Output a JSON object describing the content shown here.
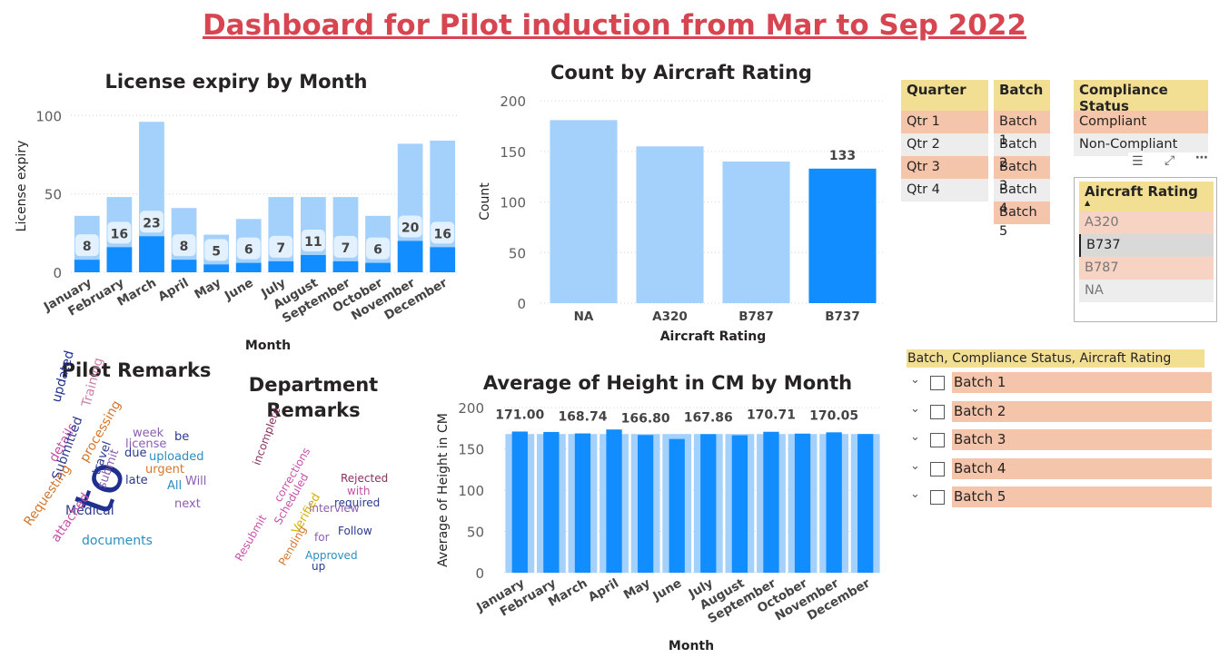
{
  "dashboard_title": "Dashboard for Pilot induction from Mar to Sep 2022",
  "chart_data": [
    {
      "id": "license",
      "type": "bar",
      "title": "License expiry by Month",
      "xlabel": "Month",
      "ylabel": "License expiry",
      "categories": [
        "January",
        "February",
        "March",
        "April",
        "May",
        "June",
        "July",
        "August",
        "September",
        "October",
        "November",
        "December"
      ],
      "series": [
        {
          "values": [
            8,
            16,
            23,
            8,
            5,
            6,
            7,
            11,
            7,
            6,
            20,
            16
          ]
        },
        {
          "values": [
            36,
            48,
            96,
            41,
            24,
            34,
            48,
            48,
            48,
            36,
            82,
            84
          ]
        }
      ],
      "ylim": [
        0,
        110
      ],
      "yticks": [
        0,
        50,
        100
      ],
      "labels_shown": [
        "8",
        "16",
        "23",
        "8",
        "5",
        "6",
        "7",
        "11",
        "7",
        "6",
        "20",
        "16"
      ]
    },
    {
      "id": "aircraft",
      "type": "bar",
      "title": "Count by Aircraft Rating",
      "xlabel": "Aircraft Rating",
      "ylabel": "Count",
      "categories": [
        "NA",
        "A320",
        "B787",
        "B737"
      ],
      "values": [
        181,
        155,
        140,
        133
      ],
      "highlighted": "B737",
      "data_label": "133",
      "ylim": [
        0,
        210
      ],
      "yticks": [
        0,
        50,
        100,
        150,
        200
      ]
    },
    {
      "id": "height",
      "type": "bar",
      "title": "Average of Height in CM by Month",
      "xlabel": "Month",
      "ylabel": "Average of Height in CM",
      "categories": [
        "January",
        "February",
        "March",
        "April",
        "May",
        "June",
        "July",
        "August",
        "September",
        "October",
        "November",
        "December"
      ],
      "series": [
        {
          "values": [
            171.0,
            170.5,
            168.74,
            173.5,
            166.8,
            162.0,
            167.86,
            166.5,
            170.71,
            168.5,
            170.05,
            168.0
          ]
        },
        {
          "values": [
            168,
            168,
            168,
            168,
            168,
            168,
            168,
            168,
            168,
            168,
            168,
            168
          ]
        }
      ],
      "data_labels": [
        "171.00",
        "",
        "168.74",
        "",
        "166.80",
        "",
        "167.86",
        "",
        "170.71",
        "",
        "170.05",
        ""
      ],
      "ylim": [
        0,
        210
      ],
      "yticks": [
        0,
        50,
        100,
        150,
        200
      ]
    }
  ],
  "pilot_remarks": {
    "title": "Pilot Remarks",
    "words": [
      {
        "t": "to",
        "x": 100,
        "y": 530,
        "s": 58,
        "c": "#1f2f8f",
        "r": -70
      },
      {
        "t": "updated",
        "x": 62,
        "y": 435,
        "s": 14,
        "c": "#1f2f8f",
        "r": -75
      },
      {
        "t": "Training",
        "x": 95,
        "y": 440,
        "s": 14,
        "c": "#d07fa6",
        "r": -75
      },
      {
        "t": "week",
        "x": 146,
        "y": 470,
        "s": 13,
        "c": "#8b5fb0",
        "r": 0
      },
      {
        "t": "be",
        "x": 192,
        "y": 474,
        "s": 13,
        "c": "#2b3a8f",
        "r": 0
      },
      {
        "t": "license",
        "x": 138,
        "y": 482,
        "s": 13,
        "c": "#8b5fb0",
        "r": 0
      },
      {
        "t": "due",
        "x": 137,
        "y": 492,
        "s": 13,
        "c": "#2b3a8f",
        "r": 0
      },
      {
        "t": "uploaded",
        "x": 164,
        "y": 496,
        "s": 13,
        "c": "#2a8fc2",
        "r": 0
      },
      {
        "t": "urgent",
        "x": 160,
        "y": 510,
        "s": 13,
        "c": "#d4772d",
        "r": 0
      },
      {
        "t": "Will",
        "x": 204,
        "y": 523,
        "s": 13,
        "c": "#8b5fb0",
        "r": 0
      },
      {
        "t": "All",
        "x": 184,
        "y": 528,
        "s": 13,
        "c": "#2a8fc2",
        "r": 0
      },
      {
        "t": "next",
        "x": 192,
        "y": 548,
        "s": 13,
        "c": "#8b5fb0",
        "r": 0
      },
      {
        "t": "details",
        "x": 58,
        "y": 500,
        "s": 14,
        "c": "#c84fa8",
        "r": -60
      },
      {
        "t": "Submitted",
        "x": 62,
        "y": 520,
        "s": 14,
        "c": "#2b3a8f",
        "r": -70
      },
      {
        "t": "processing",
        "x": 92,
        "y": 500,
        "s": 14,
        "c": "#d4772d",
        "r": -60
      },
      {
        "t": "travel",
        "x": 106,
        "y": 515,
        "s": 13,
        "c": "#2b3a8f",
        "r": -70
      },
      {
        "t": "submit",
        "x": 112,
        "y": 530,
        "s": 13,
        "c": "#8b5fb0",
        "r": -70
      },
      {
        "t": "late",
        "x": 138,
        "y": 522,
        "s": 13,
        "c": "#2b3a8f",
        "r": 0
      },
      {
        "t": "Medical",
        "x": 72,
        "y": 555,
        "s": 14,
        "c": "#2b3a8f",
        "r": 0
      },
      {
        "t": "Requesting",
        "x": 30,
        "y": 570,
        "s": 14,
        "c": "#d4772d",
        "r": -55
      },
      {
        "t": "attached",
        "x": 60,
        "y": 588,
        "s": 14,
        "c": "#c84fa8",
        "r": -55
      },
      {
        "t": "documents",
        "x": 90,
        "y": 588,
        "s": 14,
        "c": "#2a8fc2",
        "r": 0
      }
    ]
  },
  "dept_remarks": {
    "title_line1": "Department",
    "title_line2": "Remarks",
    "words": [
      {
        "t": "incomplete",
        "x": 282,
        "y": 505,
        "s": 12,
        "c": "#8b3060",
        "r": -70
      },
      {
        "t": "Rejected",
        "x": 375,
        "y": 520,
        "s": 12,
        "c": "#8b3060",
        "r": 0
      },
      {
        "t": "with",
        "x": 382,
        "y": 534,
        "s": 12,
        "c": "#c84fa8",
        "r": 0
      },
      {
        "t": "corrections",
        "x": 305,
        "y": 545,
        "s": 12,
        "c": "#c84fa8",
        "r": -60
      },
      {
        "t": "required",
        "x": 368,
        "y": 547,
        "s": 12,
        "c": "#2b3a8f",
        "r": 0
      },
      {
        "t": "interview",
        "x": 340,
        "y": 553,
        "s": 12,
        "c": "#8b5fb0",
        "r": 0
      },
      {
        "t": "Scheduled",
        "x": 305,
        "y": 570,
        "s": 12,
        "c": "#c84fa8",
        "r": -60
      },
      {
        "t": "Verified",
        "x": 325,
        "y": 580,
        "s": 13,
        "c": "#d4b000",
        "r": -60
      },
      {
        "t": "Follow",
        "x": 372,
        "y": 578,
        "s": 12,
        "c": "#2b3a8f",
        "r": 0
      },
      {
        "t": "for",
        "x": 346,
        "y": 585,
        "s": 12,
        "c": "#8b5fb0",
        "r": 0
      },
      {
        "t": "Resubmit",
        "x": 262,
        "y": 610,
        "s": 12,
        "c": "#c84fa8",
        "r": -60
      },
      {
        "t": "Pending",
        "x": 310,
        "y": 615,
        "s": 12,
        "c": "#d4772d",
        "r": -60
      },
      {
        "t": "Approved",
        "x": 336,
        "y": 605,
        "s": 12,
        "c": "#2a8fc2",
        "r": 0
      },
      {
        "t": "up",
        "x": 343,
        "y": 617,
        "s": 12,
        "c": "#2b3a8f",
        "r": 0
      }
    ]
  },
  "slicers": {
    "quarter": {
      "title": "Quarter",
      "items": [
        {
          "label": "Qtr 1",
          "sel": true
        },
        {
          "label": "Qtr 2",
          "sel": false
        },
        {
          "label": "Qtr 3",
          "sel": true
        },
        {
          "label": "Qtr 4",
          "sel": false
        }
      ]
    },
    "batch": {
      "title": "Batch",
      "items": [
        {
          "label": "Batch 1",
          "sel": true
        },
        {
          "label": "Batch 2",
          "sel": false
        },
        {
          "label": "Batch 3",
          "sel": true
        },
        {
          "label": "Batch 4",
          "sel": false
        },
        {
          "label": "Batch 5",
          "sel": true
        }
      ]
    },
    "compliance": {
      "title": "Compliance Status",
      "items": [
        {
          "label": "Compliant",
          "sel": true
        },
        {
          "label": "Non-Compliant",
          "sel": false
        }
      ]
    },
    "aircraft": {
      "title": "Aircraft Rating",
      "items": [
        {
          "label": "A320",
          "sel": true
        },
        {
          "label": "B737",
          "sel": false
        },
        {
          "label": "B787",
          "sel": true
        },
        {
          "label": "NA",
          "sel": false
        }
      ]
    }
  },
  "hierarchy": {
    "title": "Batch, Compliance Status, Aircraft Rating",
    "items": [
      "Batch 1",
      "Batch 2",
      "Batch 3",
      "Batch 4",
      "Batch 5"
    ]
  },
  "colors": {
    "dark": "#118dff",
    "light": "#a3d1fc",
    "sel": "#f4c4ab",
    "header": "#f2df93",
    "title": "#d64550"
  }
}
